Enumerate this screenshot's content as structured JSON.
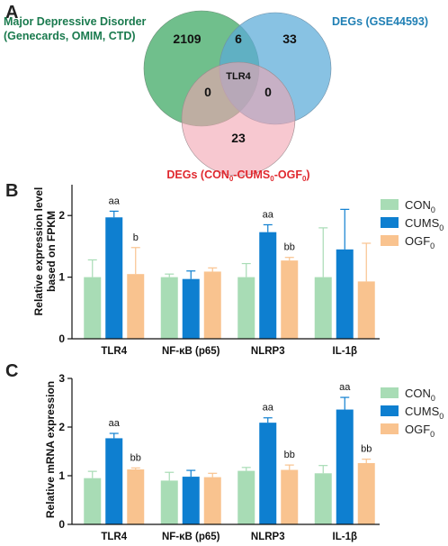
{
  "venn": {
    "panel_label": "A",
    "sets": [
      {
        "name": "Major Depressive Disorder",
        "subname": "(Genecards, OMIM, CTD)",
        "color": "#1a7a4e",
        "fill": "#4caf6f"
      },
      {
        "name": "DEGs (GSE44593)",
        "subname": "",
        "color": "#1f7fb4",
        "fill": "#5aabd8"
      },
      {
        "name": "DEGs (CON",
        "subname": "",
        "color": "#e0292f",
        "fill": "#f2a3b0"
      }
    ],
    "set3_label_parts": [
      "DEGs (CON",
      "0",
      "-CUMS",
      "0",
      "-OGF",
      "0",
      ")"
    ],
    "regions": {
      "only_a": "2109",
      "a_b": "6",
      "only_b": "33",
      "center": "TLR4",
      "a_c": "0",
      "b_c": "0",
      "only_c": "23"
    }
  },
  "legend_labels": [
    {
      "base": "CON",
      "sub": "0",
      "color": "#a8dcb5"
    },
    {
      "base": "CUMS",
      "sub": "0",
      "color": "#0e7fd0"
    },
    {
      "base": "OGF",
      "sub": "0",
      "color": "#f9c38f"
    }
  ],
  "chart_data": [
    {
      "panel_label": "B",
      "type": "bar",
      "categories": [
        "TLR4",
        "NF-κB (p65)",
        "NLRP3",
        "IL-1β"
      ],
      "ylabel_lines": [
        "Relative expression level",
        "based on FPKM"
      ],
      "ylim": [
        0,
        2.5
      ],
      "yticks": [
        "0",
        "1",
        "2"
      ],
      "series": [
        {
          "name": "CON0",
          "color": "#a8dcb5",
          "values": [
            1.0,
            1.0,
            1.0,
            1.0
          ],
          "errors": [
            0.28,
            0.05,
            0.22,
            0.8
          ]
        },
        {
          "name": "CUMS0",
          "color": "#0e7fd0",
          "values": [
            1.97,
            0.97,
            1.73,
            1.45
          ],
          "errors": [
            0.1,
            0.13,
            0.12,
            0.65
          ]
        },
        {
          "name": "OGF0",
          "color": "#f9c38f",
          "values": [
            1.05,
            1.09,
            1.27,
            0.93
          ],
          "errors": [
            0.43,
            0.06,
            0.05,
            0.62
          ]
        }
      ],
      "annotations": [
        {
          "category": 0,
          "series": 1,
          "text": "aa"
        },
        {
          "category": 0,
          "series": 2,
          "text": "b"
        },
        {
          "category": 2,
          "series": 1,
          "text": "aa"
        },
        {
          "category": 2,
          "series": 2,
          "text": "bb"
        }
      ]
    },
    {
      "panel_label": "C",
      "type": "bar",
      "categories": [
        "TLR4",
        "NF-κB (p65)",
        "NLRP3",
        "IL-1β"
      ],
      "ylabel_lines": [
        "Relative mRNA expression"
      ],
      "ylim": [
        0,
        3
      ],
      "yticks": [
        "0",
        "1",
        "2",
        "3"
      ],
      "series": [
        {
          "name": "CON0",
          "color": "#a8dcb5",
          "values": [
            0.95,
            0.9,
            1.1,
            1.05
          ],
          "errors": [
            0.14,
            0.17,
            0.07,
            0.16
          ]
        },
        {
          "name": "CUMS0",
          "color": "#0e7fd0",
          "values": [
            1.77,
            0.98,
            2.09,
            2.36
          ],
          "errors": [
            0.1,
            0.13,
            0.1,
            0.25
          ]
        },
        {
          "name": "OGF0",
          "color": "#f9c38f",
          "values": [
            1.13,
            0.97,
            1.12,
            1.26
          ],
          "errors": [
            0.03,
            0.08,
            0.1,
            0.08
          ]
        }
      ],
      "annotations": [
        {
          "category": 0,
          "series": 1,
          "text": "aa"
        },
        {
          "category": 0,
          "series": 2,
          "text": "bb"
        },
        {
          "category": 2,
          "series": 1,
          "text": "aa"
        },
        {
          "category": 2,
          "series": 2,
          "text": "bb"
        },
        {
          "category": 3,
          "series": 1,
          "text": "aa"
        },
        {
          "category": 3,
          "series": 2,
          "text": "bb"
        }
      ]
    }
  ]
}
